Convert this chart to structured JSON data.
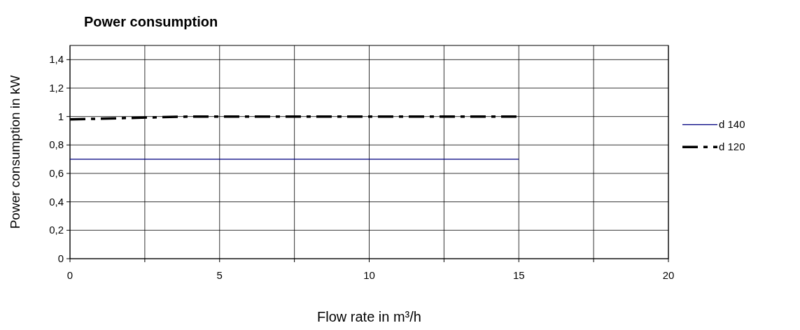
{
  "chart_data": {
    "type": "line",
    "title": "Power consumption",
    "xlabel": "Flow rate in m³/h",
    "ylabel": "Power consumption in kW",
    "xlim": [
      0,
      20
    ],
    "xticks": [
      0,
      {
        "value": 2.5,
        "label": null
      },
      5,
      {
        "value": 7.5,
        "label": null
      },
      10,
      {
        "value": 12.5,
        "label": null
      },
      15,
      {
        "value": 17.5,
        "label": null
      },
      20
    ],
    "ylim": [
      0,
      1.5
    ],
    "yticks": [
      {
        "value": 0,
        "label": "0"
      },
      {
        "value": 0.2,
        "label": "0,2"
      },
      {
        "value": 0.4,
        "label": "0,4"
      },
      {
        "value": 0.6,
        "label": "0,6"
      },
      {
        "value": 0.8,
        "label": "0,8"
      },
      {
        "value": 1,
        "label": "1"
      },
      {
        "value": 1.2,
        "label": "1,2"
      },
      {
        "value": 1.4,
        "label": "1,4"
      }
    ],
    "grid": true,
    "legend": "right",
    "series": [
      {
        "name": "d 140",
        "color": "#000080",
        "x": [
          0,
          15
        ],
        "values": [
          0.7,
          0.7
        ],
        "line_style": "solid"
      },
      {
        "name": "d 120",
        "color": "#000000",
        "x": [
          0,
          2,
          4,
          15
        ],
        "values": [
          0.98,
          0.99,
          1,
          1
        ],
        "line_style": "dashed"
      }
    ]
  }
}
